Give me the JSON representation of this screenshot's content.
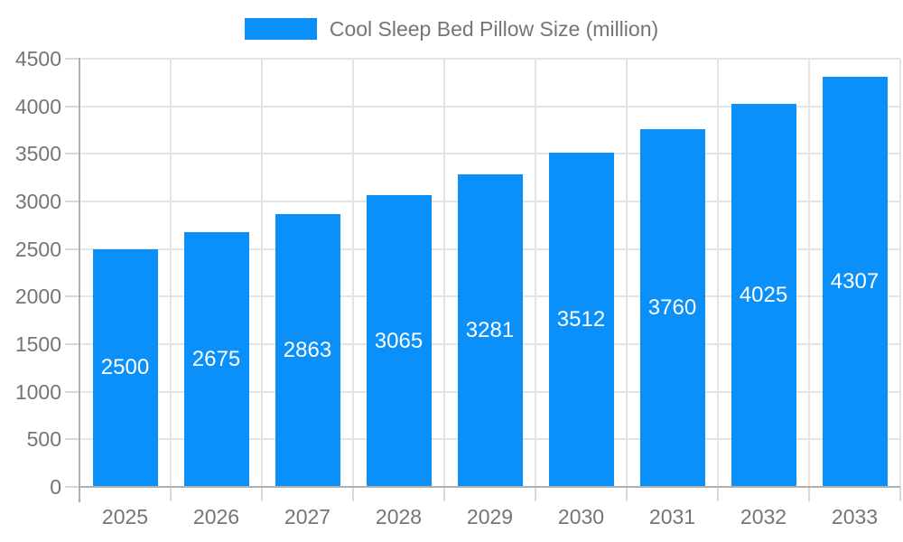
{
  "legend": {
    "label": "Cool Sleep Bed Pillow Size (million)"
  },
  "chart_data": {
    "type": "bar",
    "title": "Cool Sleep Bed Pillow Size (million)",
    "categories": [
      "2025",
      "2026",
      "2027",
      "2028",
      "2029",
      "2030",
      "2031",
      "2032",
      "2033"
    ],
    "values": [
      2500,
      2675,
      2863,
      3065,
      3281,
      3512,
      3760,
      4025,
      4307
    ],
    "bar_labels": [
      "2500",
      "2675",
      "2863",
      "3065",
      "3281",
      "3512",
      "3760",
      "4025",
      "4307"
    ],
    "series": [
      {
        "name": "Cool Sleep Bed Pillow Size (million)",
        "values": [
          2500,
          2675,
          2863,
          3065,
          3281,
          3512,
          3760,
          4025,
          4307
        ]
      }
    ],
    "xlabel": "",
    "ylabel": "",
    "ylim": [
      0,
      4500
    ],
    "y_ticks": [
      0,
      500,
      1000,
      1500,
      2000,
      2500,
      3000,
      3500,
      4000,
      4500
    ],
    "grid": true,
    "legend_position": "top",
    "colors": {
      "bar": "#0b90f9",
      "bar_label": "#ffffff",
      "axis_text": "#757575",
      "gridline": "#e4e4e4",
      "axis_line": "#b0b0b0",
      "tick": "#d9d9d9",
      "background": "#ffffff"
    }
  }
}
